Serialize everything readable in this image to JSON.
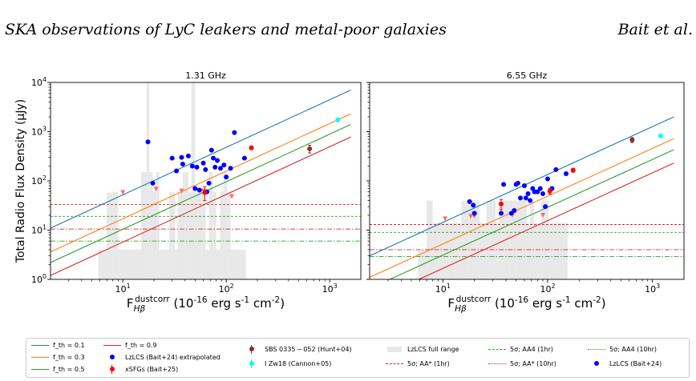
{
  "header": {
    "left": "SKA observations of LyC leakers and metal-poor galaxies",
    "right": "Bait et al."
  },
  "chart_data": [
    {
      "type": "scatter",
      "title": "1.31 GHz",
      "ylabel": "Total Radio Flux Density (μJy)",
      "xlabel": "F_{Hβ}^{dustcorr} (10^{-16} erg s^{-1} cm^{-2})",
      "xscale": "log",
      "yscale": "log",
      "xlim": [
        2,
        2000
      ],
      "ylim": [
        1,
        10000
      ],
      "x_ticks": [
        "10^1",
        "10^2",
        "10^3"
      ],
      "y_ticks": [
        "10^0",
        "10^1",
        "10^2",
        "10^3",
        "10^4"
      ],
      "fth_lines": [
        {
          "label": "f_th = 0.1",
          "color": "#1f77b4",
          "y": [
            11,
            7000
          ]
        },
        {
          "label": "f_th = 0.3",
          "color": "#ff7f0e",
          "y": [
            3.6,
            2300
          ]
        },
        {
          "label": "f_th = 0.5",
          "color": "#2ca02c",
          "y": [
            2.2,
            1400
          ]
        },
        {
          "label": "f_th = 0.9",
          "color": "#d62728",
          "y": [
            1.2,
            780
          ]
        }
      ],
      "sensitivity_lines": [
        {
          "label": "5σ; AA* (1hr)",
          "y": 33,
          "color": "#d62728",
          "dash": "3,2"
        },
        {
          "label": "5σ; AA4 (1hr)",
          "y": 19,
          "color": "#2ca02c",
          "dash": "3,2"
        },
        {
          "label": "5σ; AA* (10hr)",
          "y": 10.5,
          "color": "#d62728",
          "dash": "6,2,1.5,2"
        },
        {
          "label": "5σ; AA4 (10hr)",
          "y": 6,
          "color": "#2ca02c",
          "dash": "6,2,1.5,2"
        }
      ],
      "hist_full_range": {
        "x": [
          5.8,
          7,
          8,
          9,
          10,
          11.5,
          13,
          14,
          15,
          16,
          17,
          18,
          19.5,
          21,
          22.5,
          24,
          26,
          28,
          30,
          32,
          34,
          36,
          38,
          40,
          43,
          46,
          50,
          54,
          58,
          63,
          68,
          74,
          80,
          87,
          94,
          102,
          110,
          120,
          130,
          142,
          155
        ],
        "top": [
          4,
          58,
          60,
          4,
          4,
          4,
          4,
          4,
          150,
          150,
          10000,
          150,
          60,
          150,
          4,
          4,
          4,
          60,
          60,
          4,
          60,
          60,
          150,
          150,
          60,
          10000,
          60,
          60,
          60,
          4,
          150,
          60,
          4,
          60,
          150,
          60,
          4,
          4,
          4,
          4,
          4
        ],
        "bottom": 1
      },
      "lzlcs_extrapolated": {
        "x": [
          17.5,
          19.5,
          30,
          33,
          37,
          38,
          43,
          47,
          50,
          52,
          55,
          60,
          63,
          65,
          68,
          72,
          75,
          78,
          82,
          88,
          95,
          100,
          110,
          120,
          150
        ],
        "y": [
          620,
          90,
          290,
          160,
          300,
          220,
          320,
          200,
          70,
          190,
          65,
          230,
          170,
          60,
          90,
          420,
          290,
          190,
          260,
          180,
          210,
          120,
          180,
          960,
          290
        ]
      },
      "lzlcs_upper_limits": {
        "x": [
          10,
          21,
          37,
          60,
          113
        ],
        "y": [
          58,
          68,
          62,
          62,
          48
        ]
      },
      "xsfgs": [
        {
          "x": 62,
          "y": 58,
          "yerr": 18
        },
        {
          "x": 175,
          "y": 470,
          "yerr": 40
        }
      ],
      "sbs0335": {
        "x": 640,
        "y": 450,
        "yerr": 80
      },
      "izw18": {
        "x": 1200,
        "y": 1750,
        "yerr": 150
      }
    },
    {
      "type": "scatter",
      "title": "6.55 GHz",
      "xlabel": "F_{Hβ}^{dustcorr} (10^{-16} erg s^{-1} cm^{-2})",
      "xscale": "log",
      "yscale": "log",
      "xlim": [
        2,
        2000
      ],
      "ylim": [
        1,
        10000
      ],
      "x_ticks": [
        "10^1",
        "10^2",
        "10^3"
      ],
      "fth_lines": [
        {
          "label": "f_th = 0.1",
          "color": "#1f77b4",
          "y": [
            3,
            2000
          ]
        },
        {
          "label": "f_th = 0.3",
          "color": "#ff7f0e",
          "y": [
            1.1,
            720
          ]
        },
        {
          "label": "f_th = 0.5",
          "color": "#2ca02c",
          "y": [
            0.65,
            430
          ]
        },
        {
          "label": "f_th = 0.9",
          "color": "#d62728",
          "y": [
            0.35,
            230
          ]
        }
      ],
      "sensitivity_lines": [
        {
          "label": "5σ; AA* (1hr)",
          "y": 13,
          "color": "#d62728",
          "dash": "3,2"
        },
        {
          "label": "5σ; AA4 (1hr)",
          "y": 9,
          "color": "#2ca02c",
          "dash": "3,2"
        },
        {
          "label": "5σ; AA* (10hr)",
          "y": 4,
          "color": "#d62728",
          "dash": "6,2,1.5,2"
        },
        {
          "label": "5σ; AA4 (10hr)",
          "y": 2.9,
          "color": "#2ca02c",
          "dash": "6,2,1.5,2"
        }
      ],
      "hist_full_range": {
        "x": [
          5.8,
          7,
          8,
          9,
          10,
          11.5,
          13,
          14,
          15,
          16,
          17,
          18,
          19.5,
          21,
          22.5,
          24,
          26,
          28,
          30,
          32,
          34,
          36,
          38,
          40,
          43,
          46,
          50,
          54,
          58,
          63,
          68,
          74,
          80,
          87,
          94,
          102,
          110,
          120,
          130,
          142,
          155
        ],
        "top": [
          4,
          40,
          14,
          14,
          14,
          14,
          14,
          14,
          40,
          40,
          40,
          40,
          40,
          40,
          14,
          14,
          40,
          40,
          40,
          14,
          40,
          40,
          40,
          40,
          40,
          40,
          40,
          40,
          40,
          14,
          40,
          14,
          14,
          40,
          40,
          14,
          14,
          14,
          14,
          14,
          14
        ],
        "bottom": 1
      },
      "lzlcs_extrapolated": {
        "x": [
          18,
          19.5,
          20,
          36,
          38,
          45,
          48,
          50,
          52,
          55,
          60,
          62,
          65,
          68,
          72,
          75,
          80,
          85,
          90,
          95,
          100,
          110,
          120,
          150
        ],
        "y": [
          38,
          32,
          22,
          22,
          85,
          22,
          25,
          85,
          90,
          45,
          80,
          45,
          55,
          40,
          70,
          60,
          60,
          70,
          55,
          30,
          110,
          70,
          170,
          140
        ]
      },
      "lzlcs_upper_limits": {
        "x": [
          10.5,
          18.5,
          20,
          46,
          90
        ],
        "y": [
          17,
          19,
          19,
          20,
          20
        ]
      },
      "xsfgs": [
        {
          "x": 36,
          "y": 34,
          "yerr": 8
        },
        {
          "x": 105,
          "y": 62,
          "yerr": 8
        },
        {
          "x": 175,
          "y": 165,
          "yerr": 15
        }
      ],
      "sbs0335": {
        "x": 640,
        "y": 680,
        "yerr": 80
      },
      "izw18": {
        "x": 1200,
        "y": 820,
        "yerr": 60
      }
    }
  ],
  "legend": {
    "fth_01": "f_th = 0.1",
    "fth_03": "f_th = 0.3",
    "fth_05": "f_th = 0.5",
    "fth_09": "f_th = 0.9",
    "lzlcs_extrapolated": "LzLCS (Bait+24) extrapolated",
    "xsfgs": "xSFGs (Bait+25)",
    "sbs0335": "SBS 0335 − 052 (Hunt+04)",
    "izw18": "I Zw18 (Cannon+05)",
    "lzlcs_full_range": "LzLCS full range",
    "aastar_1hr": "5σ; AA* (1hr)",
    "aastar_10hr": "5σ; AA* (10hr)",
    "aa4_1hr": "5σ; AA4 (1hr)",
    "aa4_10hr": "5σ; AA4 (10hr)",
    "lzlcs": "LzLCS (Bait+24)"
  },
  "colors": {
    "fth_01": "#1f77b4",
    "fth_03": "#ff7f0e",
    "fth_05": "#2ca02c",
    "fth_09": "#d62728",
    "lzlcs": "#0000ff",
    "xsfgs": "#ff0000",
    "sbs0335": "#8c2d2d",
    "izw18": "#00ffff",
    "upper_limit": "#ff6b6b",
    "hist": "#e8e8e8"
  }
}
